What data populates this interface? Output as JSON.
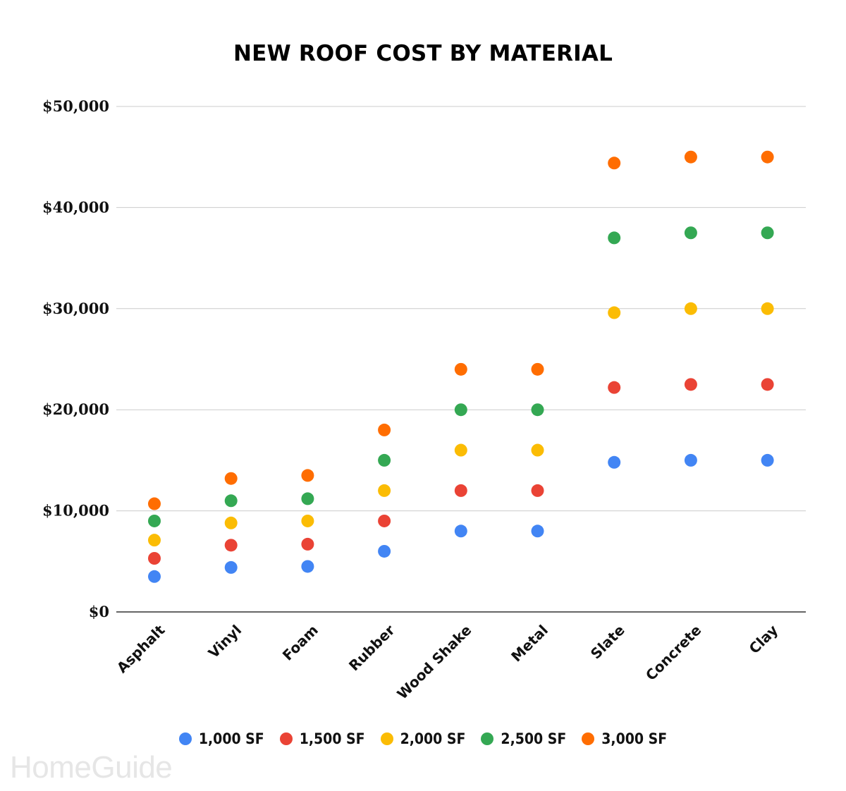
{
  "chart_data": {
    "type": "scatter",
    "title": "NEW ROOF COST BY MATERIAL",
    "xlabel": "",
    "ylabel": "",
    "categories": [
      "Asphalt",
      "Vinyl",
      "Foam",
      "Rubber",
      "Wood Shake",
      "Metal",
      "Slate",
      "Concrete",
      "Clay"
    ],
    "series": [
      {
        "name": "1,000 SF",
        "color": "#4285F4",
        "values": [
          3500,
          4400,
          4500,
          6000,
          8000,
          8000,
          14800,
          15000,
          15000
        ]
      },
      {
        "name": "1,500 SF",
        "color": "#EA4335",
        "values": [
          5300,
          6600,
          6700,
          9000,
          12000,
          12000,
          22200,
          22500,
          22500
        ]
      },
      {
        "name": "2,000 SF",
        "color": "#FBBC04",
        "values": [
          7100,
          8800,
          9000,
          12000,
          16000,
          16000,
          29600,
          30000,
          30000
        ]
      },
      {
        "name": "2,500 SF",
        "color": "#34A853",
        "values": [
          9000,
          11000,
          11200,
          15000,
          20000,
          20000,
          37000,
          37500,
          37500
        ]
      },
      {
        "name": "3,000 SF",
        "color": "#FF6D01",
        "values": [
          10700,
          13200,
          13500,
          18000,
          24000,
          24000,
          44400,
          45000,
          45000
        ]
      }
    ],
    "ylim": [
      0,
      50000
    ],
    "yticks": [
      0,
      10000,
      20000,
      30000,
      40000,
      50000
    ],
    "ytick_labels": [
      "$0",
      "$10,000",
      "$20,000",
      "$30,000",
      "$40,000",
      "$50,000"
    ],
    "grid": true,
    "legend_position": "bottom"
  },
  "watermark": "HomeGuide"
}
